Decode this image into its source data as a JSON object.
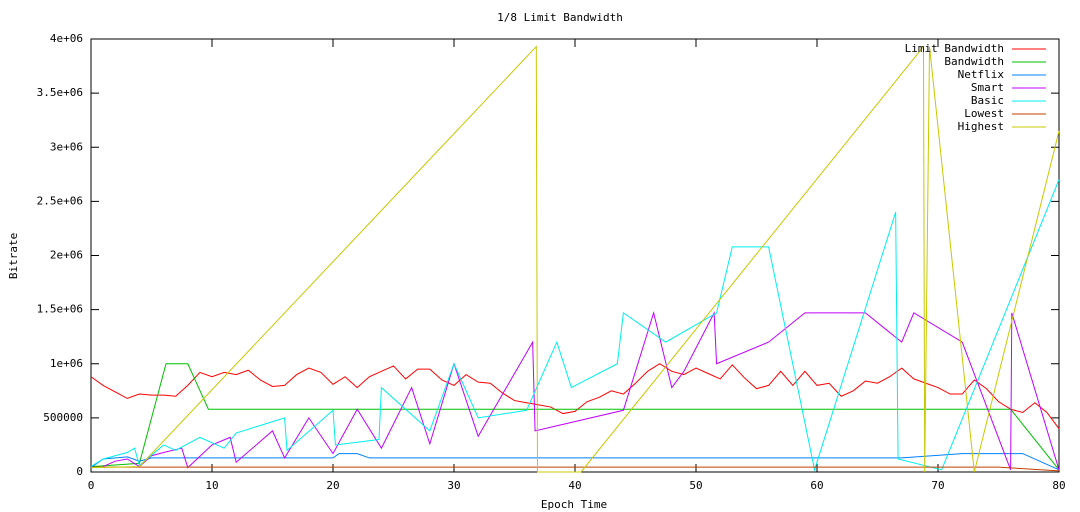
{
  "chart_data": {
    "type": "line",
    "title": "1/8 Limit Bandwidth",
    "x_label": "Epoch Time",
    "y_label": "Bitrate",
    "xlim": [
      0,
      80
    ],
    "xticks": [
      0,
      10,
      20,
      30,
      40,
      50,
      60,
      70,
      80
    ],
    "ylim": [
      0,
      4000000
    ],
    "yticks": [
      0,
      500000,
      {
        "value": 1000000,
        "label": "1e+06"
      },
      {
        "value": 1500000,
        "label": "1.5e+06"
      },
      {
        "value": 2000000,
        "label": "2e+06"
      },
      {
        "value": 2500000,
        "label": "2.5e+06"
      },
      {
        "value": 3000000,
        "label": "3e+06"
      },
      {
        "value": 3500000,
        "label": "3.5e+06"
      },
      {
        "value": 4000000,
        "label": "4e+06"
      }
    ],
    "legend": "upper right",
    "series": [
      {
        "name": "Limit Bandwidth",
        "color": "#ff0000",
        "x": [
          0,
          1,
          2,
          3,
          4,
          5,
          6,
          7,
          8,
          9,
          10,
          11,
          12,
          13,
          14,
          15,
          16,
          17,
          18,
          19,
          20,
          21,
          22,
          23,
          24,
          25,
          26,
          27,
          28,
          29,
          30,
          31,
          32,
          33,
          34,
          35,
          36,
          37,
          38,
          39,
          40,
          41,
          42,
          43,
          44,
          45,
          46,
          47,
          48,
          49,
          50,
          51,
          52,
          53,
          54,
          55,
          56,
          57,
          58,
          59,
          60,
          61,
          62,
          63,
          64,
          65,
          66,
          67,
          68,
          69,
          70,
          71,
          72,
          73,
          74,
          75,
          76,
          77,
          78,
          79,
          80
        ],
        "values": [
          880000,
          800000,
          740000,
          680000,
          720000,
          710000,
          710000,
          700000,
          800000,
          920000,
          880000,
          920000,
          900000,
          940000,
          850000,
          790000,
          800000,
          900000,
          960000,
          920000,
          810000,
          880000,
          780000,
          880000,
          930000,
          980000,
          860000,
          950000,
          950000,
          850000,
          800000,
          900000,
          830000,
          820000,
          730000,
          660000,
          640000,
          620000,
          600000,
          540000,
          560000,
          650000,
          690000,
          750000,
          720000,
          820000,
          930000,
          1000000,
          930000,
          900000,
          960000,
          910000,
          860000,
          990000,
          870000,
          770000,
          800000,
          930000,
          800000,
          930000,
          800000,
          820000,
          700000,
          750000,
          840000,
          820000,
          880000,
          960000,
          860000,
          820000,
          780000,
          720000,
          720000,
          850000,
          770000,
          650000,
          580000,
          550000,
          640000,
          550000,
          400000
        ]
      },
      {
        "name": "Bandwidth",
        "color": "#00c000",
        "x": [
          0,
          4,
          6.2,
          8,
          9.7,
          76,
          80
        ],
        "values": [
          50000,
          80000,
          1000000,
          1000000,
          580000,
          580000,
          20000
        ]
      },
      {
        "name": "Netflix",
        "color": "#0080ff",
        "x": [
          0,
          1,
          3,
          4,
          5,
          20,
          20.5,
          22,
          23,
          67,
          72,
          77,
          80
        ],
        "values": [
          40000,
          120000,
          140000,
          100000,
          130000,
          130000,
          170000,
          170000,
          130000,
          130000,
          170000,
          170000,
          20000
        ]
      },
      {
        "name": "Smart",
        "color": "#c000ff",
        "x": [
          1,
          2,
          3,
          4,
          5,
          6,
          7.5,
          8,
          10,
          11.5,
          12,
          15,
          16,
          18,
          20,
          22,
          24,
          26.5,
          28,
          30,
          32,
          36.5,
          36.7,
          44,
          46.5,
          48,
          49,
          51.5,
          51.7,
          56,
          59,
          64,
          67,
          68,
          72,
          76,
          76.1,
          80
        ],
        "values": [
          50000,
          100000,
          120000,
          50000,
          150000,
          180000,
          220000,
          40000,
          250000,
          320000,
          90000,
          380000,
          130000,
          500000,
          170000,
          580000,
          220000,
          780000,
          260000,
          1000000,
          330000,
          1200000,
          380000,
          570000,
          1470000,
          780000,
          930000,
          1470000,
          1000000,
          1200000,
          1470000,
          1470000,
          1200000,
          1470000,
          1200000,
          20000,
          1470000,
          20000
        ]
      },
      {
        "name": "Basic",
        "color": "#00eeee",
        "x": [
          0,
          1,
          3,
          3.6,
          4,
          6,
          7,
          9,
          11,
          12,
          16,
          16.2,
          20,
          20.2,
          23.8,
          24,
          28,
          30,
          32,
          36,
          38.5,
          39.7,
          43.5,
          44,
          47.5,
          51.7,
          53,
          56,
          59.8,
          66.5,
          66.7,
          70.3,
          80
        ],
        "values": [
          50000,
          120000,
          180000,
          220000,
          60000,
          250000,
          200000,
          320000,
          220000,
          360000,
          500000,
          200000,
          570000,
          250000,
          300000,
          780000,
          380000,
          1000000,
          500000,
          570000,
          1200000,
          780000,
          1000000,
          1470000,
          1200000,
          1470000,
          2080000,
          2080000,
          20000,
          2400000,
          120000,
          20000,
          2700000
        ]
      },
      {
        "name": "Lowest",
        "color": "#c04000",
        "x": [
          0,
          75,
          80
        ],
        "values": [
          45000,
          45000,
          10000
        ]
      },
      {
        "name": "Highest",
        "color": "#c8c800",
        "x": [
          0,
          4,
          36.8,
          36.9,
          40.5,
          68.8,
          68.9,
          69.3,
          73,
          80
        ],
        "values": [
          40000,
          50000,
          3930000,
          0,
          0,
          3930000,
          0,
          3930000,
          0,
          3150000
        ]
      }
    ]
  }
}
